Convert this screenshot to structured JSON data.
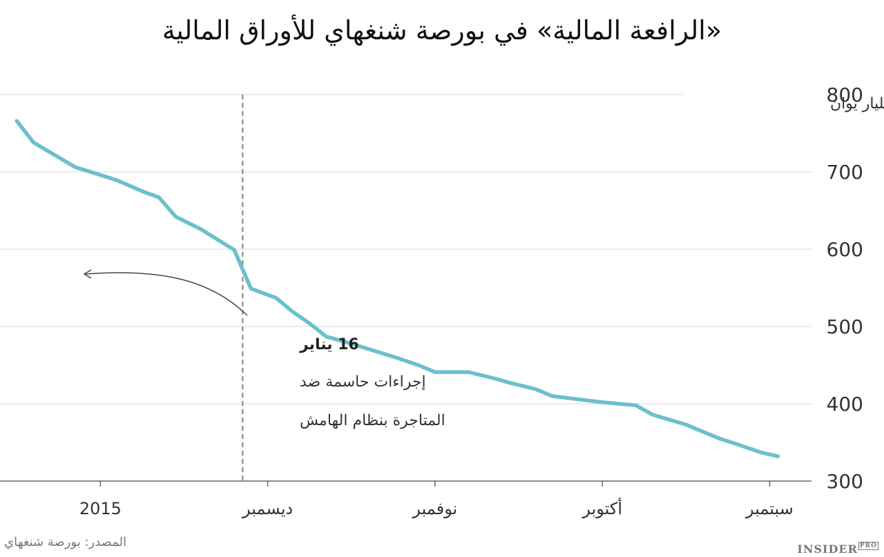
{
  "title": "«الرافعة المالية» في بورصة شنغهاي للأوراق المالية",
  "source": "المصدر: بورصة شنغهاي",
  "logo": {
    "text": "INSIDER",
    "sub": "PRO"
  },
  "colors": {
    "line": "#6cc0cb",
    "grid": "#d9d9d9",
    "marker": "#999999",
    "arrow": "#444444"
  },
  "annotation": {
    "date": "16 يناير",
    "line1": "إجراءات حاسمة ضد",
    "line2": "المتاجرة بنظام الهامش",
    "marker_x": 15.3
  },
  "chart_data": {
    "type": "line",
    "title": "«الرافعة المالية» في بورصة شنغهاي للأوراق المالية",
    "ylabel": "مليار يوان",
    "xlabel": "",
    "ylim": [
      300,
      800
    ],
    "y_ticks": [
      300,
      400,
      500,
      600,
      700,
      800
    ],
    "x_ticks": [
      {
        "x": 9,
        "label": "سبتمبر"
      },
      {
        "x": 11,
        "label": "أكتوبر"
      },
      {
        "x": 13,
        "label": "نوفمبر"
      },
      {
        "x": 15,
        "label": "ديسمبر"
      },
      {
        "x": 17,
        "label": "2015"
      }
    ],
    "x_reversed": true,
    "grid": true,
    "series": [
      {
        "x": [
          8.9,
          9.1,
          9.4,
          9.6,
          9.8,
          10.0,
          10.4,
          10.6,
          11.0,
          11.3,
          11.6,
          11.8,
          12.1,
          12.3,
          12.6,
          13.0,
          13.2,
          13.5,
          13.8,
          14.1,
          14.3,
          14.5,
          14.7,
          14.9,
          15.2,
          15.4,
          15.8,
          16.1,
          16.3,
          16.5,
          16.8,
          17.0,
          17.3,
          17.8,
          18.0
        ],
        "y": [
          332,
          337,
          348,
          355,
          364,
          373,
          386,
          398,
          402,
          406,
          410,
          419,
          427,
          433,
          441,
          441,
          450,
          461,
          471,
          481,
          487,
          504,
          519,
          537,
          549,
          599,
          626,
          642,
          667,
          675,
          689,
          696,
          706,
          738,
          766
        ]
      }
    ]
  }
}
